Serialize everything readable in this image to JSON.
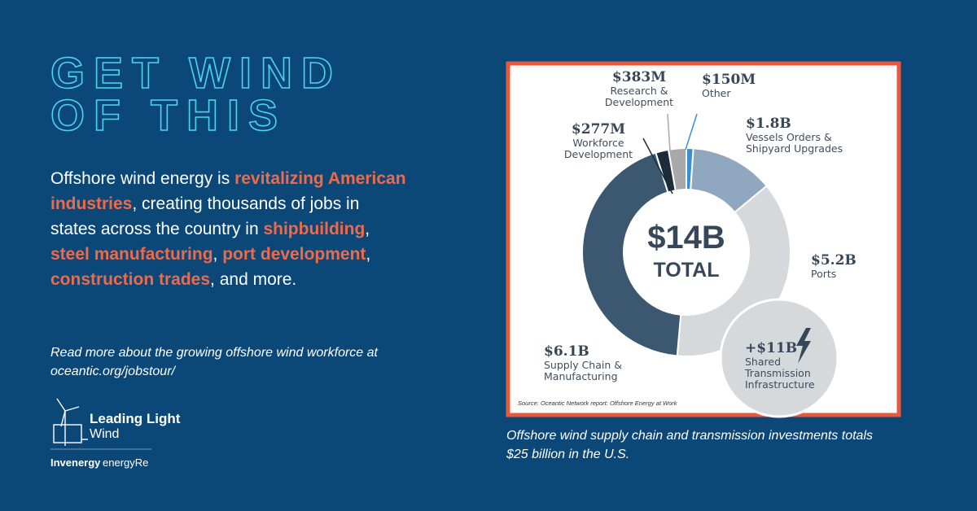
{
  "heading": [
    "GET WIND",
    "OF THIS"
  ],
  "body": [
    {
      "text": "Offshore wind energy is ",
      "emphasis": false
    },
    {
      "text": "revitalizing American industries",
      "emphasis": true
    },
    {
      "text": ", creating thousands of jobs in states across the country in ",
      "emphasis": false
    },
    {
      "text": "shipbuilding",
      "emphasis": true
    },
    {
      "text": ", ",
      "emphasis": false
    },
    {
      "text": "steel manufacturing",
      "emphasis": true
    },
    {
      "text": ", ",
      "emphasis": false
    },
    {
      "text": "port development",
      "emphasis": true
    },
    {
      "text": ", ",
      "emphasis": false
    },
    {
      "text": "construction trades",
      "emphasis": true
    },
    {
      "text": ", and more.",
      "emphasis": false
    }
  ],
  "read_more": "Read more about the growing offshore wind workforce at oceantic.org/jobstour/",
  "logo": {
    "name": "Leading Light",
    "name2": "Wind",
    "partner1": "Invenergy",
    "partner2": "energyRe"
  },
  "caption": "Offshore wind supply chain and transmission investments totals $25 billion in the U.S.",
  "chart_data": {
    "type": "donut",
    "center_label": "$14B",
    "center_label2": "TOTAL",
    "categories": [
      "Other",
      "Vessels Orders &\nShipyard Upgrades",
      "Ports",
      "Supply Chain &\nManufacturing",
      "Workforce\nDevelopment",
      "Research &\nDevelopment"
    ],
    "values": [
      150,
      1800,
      5200,
      6100,
      277,
      383
    ],
    "value_labels": [
      "$150M",
      "$1.8B",
      "$5.2B",
      "$6.1B",
      "$277M",
      "$383M"
    ],
    "colors": [
      "#3a8fd0",
      "#8fa8bf",
      "#d5d9dc",
      "#3c5870",
      "#1d2b3a",
      "#a9a9a9"
    ],
    "annotation": "+$11B",
    "annotation_text": "Shared\nTransmission\nInfrastructure",
    "source": "Source: Oceantic Network report: Offshore Energy at Work"
  }
}
